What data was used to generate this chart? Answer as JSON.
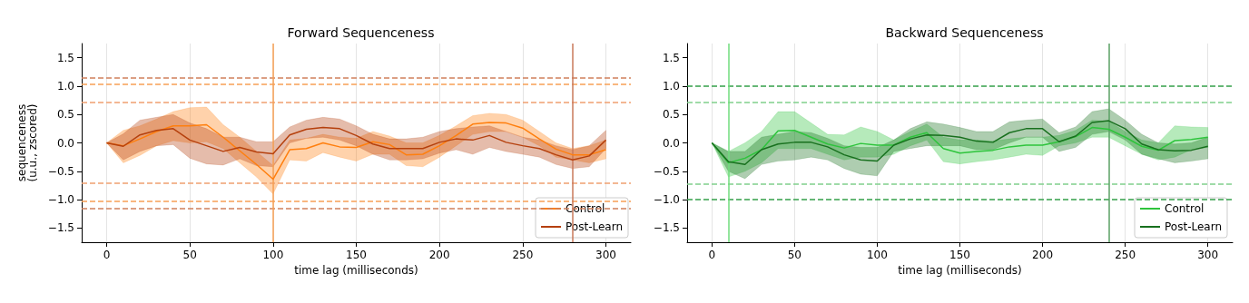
{
  "chart_data": [
    {
      "type": "line",
      "title": "Forward Sequenceness",
      "xlabel": "time lag (milliseconds)",
      "ylabel": "sequenceness\n(u.u., zscored)",
      "x": [
        0,
        10,
        20,
        30,
        40,
        50,
        60,
        70,
        80,
        90,
        100,
        110,
        120,
        130,
        140,
        150,
        160,
        170,
        180,
        190,
        200,
        210,
        220,
        230,
        240,
        250,
        260,
        270,
        280,
        290,
        300
      ],
      "xlim": [
        -15,
        315
      ],
      "xticks": [
        0,
        50,
        100,
        150,
        200,
        250,
        300
      ],
      "ylim": [
        -1.75,
        1.75
      ],
      "yticks": [
        {
          "value": -1.5,
          "label": "−1.5"
        },
        {
          "value": -1,
          "label": "−1.0"
        },
        {
          "value": -0.5,
          "label": "−0.5"
        },
        {
          "value": 0,
          "label": "0.0"
        },
        {
          "value": 0.5,
          "label": "0.5"
        },
        {
          "value": 1,
          "label": "1.0"
        },
        {
          "value": 1.5,
          "label": "1.5"
        }
      ],
      "grid": "x",
      "legend": "bottom right",
      "marker": "none",
      "line_style": "solid",
      "series": [
        {
          "name": "Control",
          "color": "#ff7f0e",
          "values": [
            0,
            -0.05,
            0.07,
            0.2,
            0.3,
            0.3,
            0.32,
            0.1,
            -0.14,
            -0.38,
            -0.64,
            -0.12,
            -0.1,
            0,
            -0.07,
            -0.08,
            0.02,
            -0.03,
            -0.21,
            -0.2,
            -0.05,
            0.13,
            0.33,
            0.36,
            0.35,
            0.26,
            0.07,
            -0.11,
            -0.21,
            -0.21,
            -0.12
          ],
          "upper": [
            0,
            0.22,
            0.3,
            0.42,
            0.55,
            0.62,
            0.63,
            0.32,
            0.1,
            -0.15,
            -0.4,
            0.05,
            0.08,
            0.15,
            0.1,
            0.08,
            0.2,
            0.12,
            0,
            0,
            0.13,
            0.3,
            0.48,
            0.52,
            0.5,
            0.4,
            0.2,
            0,
            -0.1,
            -0.05,
            0.05
          ],
          "lower": [
            0,
            -0.35,
            -0.22,
            -0.05,
            0.04,
            0,
            0.02,
            -0.1,
            -0.35,
            -0.6,
            -0.9,
            -0.3,
            -0.32,
            -0.17,
            -0.25,
            -0.32,
            -0.2,
            -0.2,
            -0.4,
            -0.42,
            -0.25,
            -0.05,
            0.15,
            0.2,
            0.2,
            0.1,
            -0.05,
            -0.25,
            -0.3,
            -0.35,
            -0.28
          ]
        },
        {
          "name": "Post-Learn",
          "color": "#b5400d",
          "values": [
            0,
            -0.06,
            0.14,
            0.22,
            0.25,
            0.05,
            -0.05,
            -0.15,
            -0.08,
            -0.16,
            -0.19,
            0.14,
            0.24,
            0.27,
            0.25,
            0.13,
            -0.02,
            -0.1,
            -0.1,
            -0.1,
            0.01,
            0.07,
            0.05,
            0.13,
            0.01,
            -0.05,
            -0.1,
            -0.21,
            -0.3,
            -0.23,
            0.05
          ],
          "upper": [
            0,
            0.16,
            0.4,
            0.45,
            0.5,
            0.35,
            0.25,
            0.1,
            0.1,
            0.02,
            0.02,
            0.28,
            0.4,
            0.45,
            0.42,
            0.3,
            0.15,
            0.07,
            0.07,
            0.1,
            0.2,
            0.25,
            0.28,
            0.3,
            0.2,
            0.1,
            0.05,
            -0.05,
            -0.12,
            -0.05,
            0.22
          ],
          "lower": [
            0,
            -0.3,
            -0.15,
            -0.05,
            -0.03,
            -0.27,
            -0.37,
            -0.39,
            -0.28,
            -0.4,
            -0.42,
            0,
            0.08,
            0.1,
            0.05,
            -0.05,
            -0.2,
            -0.3,
            -0.3,
            -0.28,
            -0.18,
            -0.12,
            -0.2,
            -0.08,
            -0.15,
            -0.2,
            -0.25,
            -0.38,
            -0.45,
            -0.42,
            -0.1
          ]
        }
      ],
      "ref_lines": [
        {
          "axis": "y",
          "value": 1.15,
          "color": "#d0805c",
          "line_style": "dashed"
        },
        {
          "axis": "y",
          "value": 1.03,
          "color": "#f7a055",
          "line_style": "dashed"
        },
        {
          "axis": "y",
          "value": 0.71,
          "color": "#f0a070",
          "line_style": "dashed"
        },
        {
          "axis": "y",
          "value": -0.71,
          "color": "#f0a070",
          "line_style": "dashed"
        },
        {
          "axis": "y",
          "value": -1.03,
          "color": "#f7a055",
          "line_style": "dashed"
        },
        {
          "axis": "y",
          "value": -1.15,
          "color": "#d0805c",
          "line_style": "dashed"
        },
        {
          "axis": "x",
          "value": 100,
          "color": "#f7a055",
          "line_style": "solid"
        },
        {
          "axis": "x",
          "value": 280,
          "color": "#c8785a",
          "line_style": "solid"
        }
      ]
    },
    {
      "type": "line",
      "title": "Backward Sequenceness",
      "xlabel": "time lag (milliseconds)",
      "x": [
        0,
        10,
        20,
        30,
        40,
        50,
        60,
        70,
        80,
        90,
        100,
        110,
        120,
        130,
        140,
        150,
        160,
        170,
        180,
        190,
        200,
        210,
        220,
        230,
        240,
        250,
        260,
        270,
        280,
        290,
        300
      ],
      "xlim": [
        -15,
        315
      ],
      "xticks": [
        0,
        50,
        100,
        150,
        200,
        250,
        300
      ],
      "ylim": [
        -1.75,
        1.75
      ],
      "yticks": [
        {
          "value": -1.5,
          "label": "−1.5"
        },
        {
          "value": -1,
          "label": "−1.0"
        },
        {
          "value": -0.5,
          "label": "−0.5"
        },
        {
          "value": 0,
          "label": "0.0"
        },
        {
          "value": 0.5,
          "label": "0.5"
        },
        {
          "value": 1,
          "label": "1.0"
        },
        {
          "value": 1.5,
          "label": "1.5"
        }
      ],
      "grid": "x",
      "legend": "bottom right",
      "marker": "none",
      "line_style": "solid",
      "series": [
        {
          "name": "Control",
          "color": "#2ec43c",
          "values": [
            0,
            -0.35,
            -0.27,
            -0.12,
            0.21,
            0.22,
            0.1,
            -0.02,
            -0.09,
            -0.01,
            -0.04,
            -0.04,
            0.1,
            0.18,
            -0.1,
            -0.18,
            -0.15,
            -0.13,
            -0.07,
            -0.04,
            -0.04,
            0.02,
            0.11,
            0.27,
            0.24,
            0.1,
            -0.06,
            -0.13,
            0.04,
            0.06,
            0.1
          ],
          "upper": [
            0,
            -0.15,
            0,
            0.2,
            0.55,
            0.55,
            0.35,
            0.15,
            0.14,
            0.28,
            0.2,
            0.05,
            0.2,
            0.33,
            0.1,
            0.05,
            0.05,
            0.03,
            0.07,
            0.1,
            0.1,
            0.13,
            0.22,
            0.4,
            0.38,
            0.2,
            0.05,
            0,
            0.3,
            0.28,
            0.27
          ],
          "lower": [
            0,
            -0.6,
            -0.5,
            -0.35,
            -0.1,
            -0.1,
            -0.1,
            -0.2,
            -0.3,
            -0.25,
            -0.25,
            -0.2,
            -0.05,
            0.05,
            -0.33,
            -0.37,
            -0.33,
            -0.3,
            -0.25,
            -0.2,
            -0.22,
            -0.05,
            0,
            0.1,
            0.1,
            -0.05,
            -0.2,
            -0.3,
            -0.25,
            -0.12,
            -0.08
          ]
        },
        {
          "name": "Post-Learn",
          "color": "#18701e",
          "values": [
            0,
            -0.33,
            -0.38,
            -0.12,
            -0.02,
            0.01,
            0.01,
            -0.07,
            -0.21,
            -0.3,
            -0.32,
            -0.04,
            0.07,
            0.14,
            0.13,
            0.1,
            0.03,
            0.01,
            0.18,
            0.25,
            0.25,
            0.02,
            0.12,
            0.36,
            0.39,
            0.25,
            -0.02,
            -0.12,
            -0.14,
            -0.13,
            -0.06
          ],
          "upper": [
            0,
            -0.15,
            -0.15,
            0.1,
            0.15,
            0.2,
            0.18,
            0.08,
            -0.05,
            -0.08,
            -0.08,
            0.05,
            0.25,
            0.37,
            0.33,
            0.27,
            0.2,
            0.2,
            0.37,
            0.4,
            0.42,
            0.18,
            0.28,
            0.55,
            0.6,
            0.4,
            0.15,
            0,
            -0.02,
            0,
            0.1
          ],
          "lower": [
            0,
            -0.5,
            -0.63,
            -0.38,
            -0.32,
            -0.3,
            -0.25,
            -0.3,
            -0.45,
            -0.55,
            -0.58,
            -0.15,
            -0.1,
            -0.05,
            -0.05,
            -0.05,
            -0.12,
            -0.12,
            0,
            0.1,
            0.1,
            -0.15,
            -0.08,
            0.15,
            0.2,
            0.05,
            -0.2,
            -0.28,
            -0.35,
            -0.32,
            -0.28
          ]
        }
      ],
      "ref_lines": [
        {
          "axis": "y",
          "value": 1,
          "color": "#35a04a",
          "line_style": "dashed"
        },
        {
          "axis": "y",
          "value": 0.72,
          "color": "#80cf8c",
          "line_style": "dashed"
        },
        {
          "axis": "y",
          "value": -0.72,
          "color": "#80cf8c",
          "line_style": "dashed"
        },
        {
          "axis": "y",
          "value": -1,
          "color": "#35a04a",
          "line_style": "dashed"
        },
        {
          "axis": "x",
          "value": 10,
          "color": "#70dc7c",
          "line_style": "solid"
        },
        {
          "axis": "x",
          "value": 240,
          "color": "#5aa065",
          "line_style": "solid"
        }
      ]
    }
  ]
}
